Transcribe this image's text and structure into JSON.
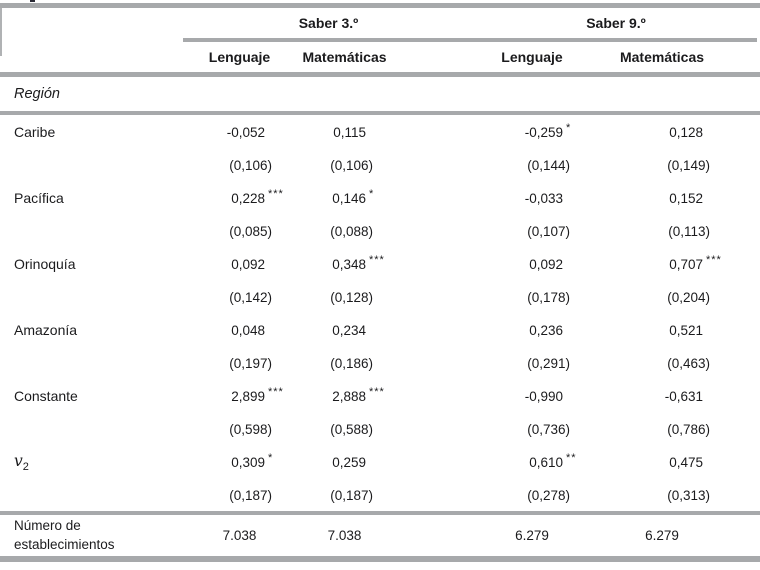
{
  "header": {
    "saber3": "Saber 3.º",
    "saber9": "Saber 9.º",
    "columns": [
      "Lenguaje",
      "Matemáticas",
      "Lenguaje",
      "Matemáticas"
    ]
  },
  "section": {
    "label": "Región"
  },
  "rows": [
    {
      "label": "Caribe",
      "cells": [
        {
          "value": "-0,052",
          "stars": "",
          "se": "(0,106)"
        },
        {
          "value": "0,115",
          "stars": "",
          "se": "(0,106)"
        },
        {
          "value": "-0,259",
          "stars": "*",
          "se": "(0,144)"
        },
        {
          "value": "0,128",
          "stars": "",
          "se": "(0,149)"
        }
      ]
    },
    {
      "label": "Pacífica",
      "cells": [
        {
          "value": "0,228",
          "stars": "***",
          "se": "(0,085)"
        },
        {
          "value": "0,146",
          "stars": "*",
          "se": "(0,088)"
        },
        {
          "value": "-0,033",
          "stars": "",
          "se": "(0,107)"
        },
        {
          "value": "0,152",
          "stars": "",
          "se": "(0,113)"
        }
      ]
    },
    {
      "label": "Orinoquía",
      "cells": [
        {
          "value": "0,092",
          "stars": "",
          "se": "(0,142)"
        },
        {
          "value": "0,348",
          "stars": "***",
          "se": "(0,128)"
        },
        {
          "value": "0,092",
          "stars": "",
          "se": "(0,178)"
        },
        {
          "value": "0,707",
          "stars": "***",
          "se": "(0,204)"
        }
      ]
    },
    {
      "label": "Amazonía",
      "cells": [
        {
          "value": "0,048",
          "stars": "",
          "se": "(0,197)"
        },
        {
          "value": "0,234",
          "stars": "",
          "se": "(0,186)"
        },
        {
          "value": "0,236",
          "stars": "",
          "se": "(0,291)"
        },
        {
          "value": "0,521",
          "stars": "",
          "se": "(0,463)"
        }
      ]
    },
    {
      "label": "Constante",
      "cells": [
        {
          "value": "2,899",
          "stars": "***",
          "se": "(0,598)"
        },
        {
          "value": "2,888",
          "stars": "***",
          "se": "(0,588)"
        },
        {
          "value": "-0,990",
          "stars": "",
          "se": "(0,736)"
        },
        {
          "value": "-0,631",
          "stars": "",
          "se": "(0,786)"
        }
      ]
    },
    {
      "label": "v",
      "label_sub": "2",
      "cells": [
        {
          "value": "0,309",
          "stars": "*",
          "se": "(0,187)"
        },
        {
          "value": "0,259",
          "stars": "",
          "se": "(0,187)"
        },
        {
          "value": "0,610",
          "stars": "**",
          "se": "(0,278)"
        },
        {
          "value": "0,475",
          "stars": "",
          "se": "(0,313)"
        }
      ]
    }
  ],
  "footer": {
    "label_line1": "Número de",
    "label_line2": "establecimientos",
    "values": [
      "7.038",
      "7.038",
      "6.279",
      "6.279"
    ]
  },
  "colors": {
    "rule_gray": "#a7a9ab",
    "text": "#1b1b1d"
  }
}
